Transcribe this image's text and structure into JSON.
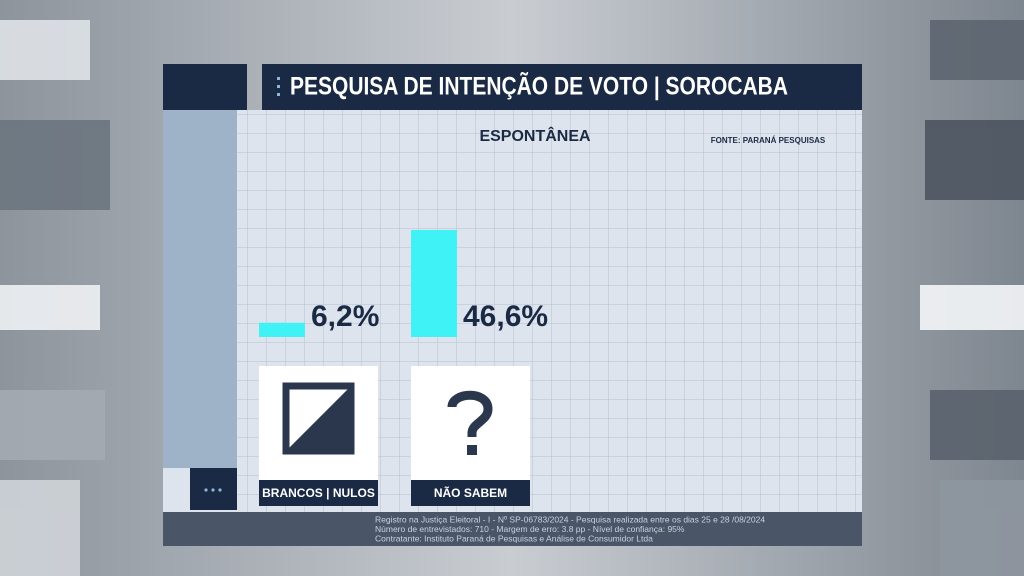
{
  "chart_data": {
    "type": "bar",
    "title": "PESQUISA DE INTENÇÃO DE VOTO | SOROCABA",
    "subtitle": "ESPONTÂNEA",
    "source": "FONTE: PARANÁ PESQUISAS",
    "categories": [
      "BRANCOS | NULOS",
      "NÃO SABEM"
    ],
    "values": [
      6.2,
      46.6
    ],
    "value_labels": [
      "6,2%",
      "46,6%"
    ],
    "color": "#3ef2f6",
    "footnotes": [
      "Registro na Justiça Eleitoral - I - Nº SP-06783/2024  - Pesquisa realizada entre os dias 25 e 28 /08/2024",
      "Número de entrevistados: 710 - Margem de erro: 3.8 pp - Nível de confiança: 95%",
      "Contratante: Instituto Paraná de Pesquisas e Análise de Consumidor Ltda"
    ]
  }
}
